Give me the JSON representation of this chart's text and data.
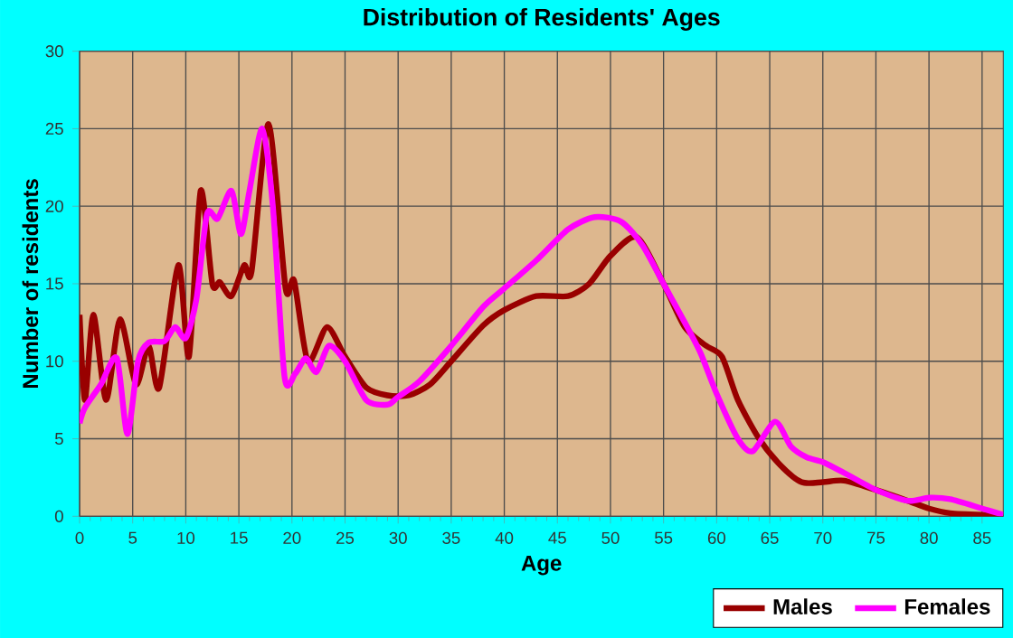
{
  "chart_data": {
    "type": "line",
    "title": "Distribution of Residents' Ages",
    "xlabel": "Age",
    "ylabel": "Number of residents",
    "xlim": [
      0,
      87
    ],
    "ylim": [
      0,
      30
    ],
    "xticks": [
      0,
      5,
      10,
      15,
      20,
      25,
      30,
      35,
      40,
      45,
      50,
      55,
      60,
      65,
      70,
      75,
      80,
      85
    ],
    "yticks": [
      0,
      5,
      10,
      15,
      20,
      25,
      30
    ],
    "grid": true,
    "legend": "bottom",
    "series": [
      {
        "name": "Males",
        "color": "#990000",
        "x": [
          0,
          0.5,
          1.3,
          2.5,
          3.8,
          5.3,
          6.5,
          7.5,
          9.3,
          10.3,
          11.4,
          12.5,
          13.2,
          14.3,
          15.5,
          16.2,
          17.8,
          19.4,
          20.2,
          21.5,
          23.3,
          25,
          27,
          29,
          31,
          33,
          35,
          38,
          40,
          43,
          46,
          48,
          50,
          52.5,
          55,
          57,
          59,
          60.5,
          62,
          64,
          66,
          68,
          70,
          72,
          75,
          78,
          80,
          82,
          85,
          87
        ],
        "values": [
          13,
          7.5,
          13,
          7.5,
          12.7,
          8.5,
          11,
          8.3,
          16.2,
          10.3,
          21,
          15,
          15.1,
          14.2,
          16.2,
          15.8,
          25.3,
          14.7,
          15.2,
          10,
          12.2,
          10.3,
          8.3,
          7.8,
          7.8,
          8.5,
          10,
          12.3,
          13.3,
          14.2,
          14.2,
          15,
          16.8,
          18,
          15,
          12.2,
          11,
          10.3,
          7.5,
          5,
          3.3,
          2.2,
          2.2,
          2.3,
          1.7,
          1,
          0.5,
          0.2,
          0.1,
          0.1
        ]
      },
      {
        "name": "Females",
        "color": "#ff00ff",
        "x": [
          0,
          0.5,
          2,
          3.5,
          4.5,
          5.5,
          6.5,
          8,
          9,
          10,
          11,
          12,
          13,
          14.3,
          15.2,
          16,
          17.2,
          18.2,
          19.3,
          20.3,
          21.3,
          22.3,
          23.5,
          25,
          27,
          29,
          30,
          32,
          35,
          38,
          40,
          43,
          46,
          48.5,
          51,
          53,
          55,
          57,
          58.5,
          60,
          62,
          63.4,
          65.5,
          67,
          68.5,
          70,
          72,
          75,
          78,
          80,
          82,
          85,
          87
        ],
        "values": [
          6,
          7,
          8.5,
          10.2,
          5.3,
          10,
          11.2,
          11.3,
          12.2,
          11.5,
          14,
          19.5,
          19.2,
          21,
          18.2,
          21,
          25,
          20,
          9,
          9.2,
          10.2,
          9.3,
          11,
          10,
          7.5,
          7.2,
          7.7,
          8.7,
          11,
          13.5,
          14.7,
          16.5,
          18.5,
          19.3,
          19,
          17.5,
          15,
          12.5,
          10.5,
          7.9,
          5,
          4.2,
          6.1,
          4.5,
          3.8,
          3.5,
          2.8,
          1.7,
          1,
          1.2,
          1.1,
          0.5,
          0.1
        ]
      }
    ]
  }
}
